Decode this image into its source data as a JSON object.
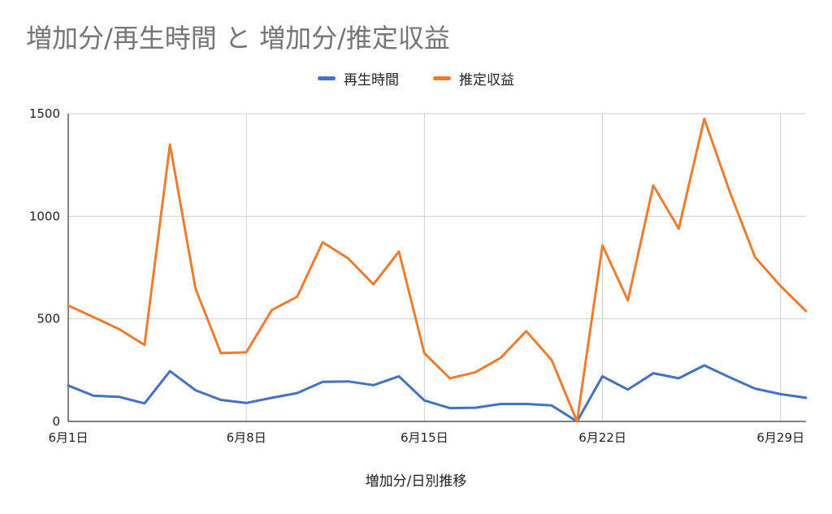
{
  "chart_data": {
    "type": "line",
    "title": "増加分/再生時間 と 増加分/推定収益",
    "xlabel": "増加分/日別推移",
    "ylabel": "",
    "ylim": [
      0,
      1500
    ],
    "yticks": [
      0,
      500,
      1000,
      1500
    ],
    "x": [
      "6月1日",
      "6月2日",
      "6月3日",
      "6月4日",
      "6月5日",
      "6月6日",
      "6月7日",
      "6月8日",
      "6月9日",
      "6月10日",
      "6月11日",
      "6月12日",
      "6月13日",
      "6月14日",
      "6月15日",
      "6月16日",
      "6月17日",
      "6月18日",
      "6月19日",
      "6月20日",
      "6月21日",
      "6月22日",
      "6月23日",
      "6月24日",
      "6月25日",
      "6月26日",
      "6月27日",
      "6月28日",
      "6月29日",
      "6月30日"
    ],
    "xticks": [
      "6月1日",
      "6月8日",
      "6月15日",
      "6月22日",
      "6月29日"
    ],
    "grid": true,
    "legend_position": "top",
    "series": [
      {
        "name": "再生時間",
        "color": "#4472c4",
        "values": [
          175,
          125,
          120,
          88,
          245,
          152,
          105,
          90,
          115,
          138,
          193,
          195,
          177,
          220,
          102,
          65,
          67,
          85,
          85,
          78,
          0,
          220,
          155,
          235,
          210,
          273,
          215,
          160,
          133,
          115
        ]
      },
      {
        "name": "推定収益",
        "color": "#ed7d31",
        "values": [
          565,
          508,
          450,
          373,
          1350,
          648,
          333,
          337,
          543,
          608,
          873,
          795,
          668,
          828,
          333,
          210,
          240,
          310,
          440,
          300,
          0,
          858,
          590,
          1150,
          940,
          1475,
          1120,
          800,
          660,
          538
        ]
      }
    ]
  }
}
